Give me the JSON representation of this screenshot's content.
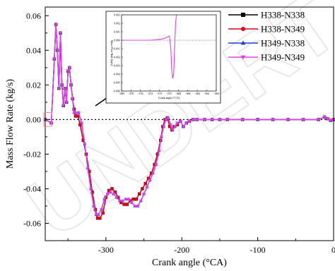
{
  "watermark": "UNDERT",
  "chart_data": {
    "type": "line",
    "title": "",
    "xlabel": "Crank angle (°CA)",
    "ylabel": "Mass Flow Rate (kg/s)",
    "xlim": [
      -380,
      0
    ],
    "ylim": [
      -0.07,
      0.065
    ],
    "xticks": [
      -300,
      -200,
      -100,
      0
    ],
    "xtick_labels": [
      "-300",
      "-200",
      "-100",
      "0"
    ],
    "yticks": [
      0.06,
      0.04,
      0.02,
      0.0,
      -0.02,
      -0.04,
      -0.06
    ],
    "ytick_labels": [
      "0.06",
      "0.04",
      "0.02",
      "0.00",
      "-0.02",
      "-0.04",
      "-0.06"
    ],
    "reference_line_y": 0.0,
    "legend_position": "top-right",
    "series": [
      {
        "name": "H338-N338",
        "color": "#000000",
        "marker": "square",
        "x": [
          -380,
          -372,
          -368,
          -366,
          -364,
          -362,
          -360,
          -358,
          -356,
          -354,
          -352,
          -350,
          -348,
          -346,
          -344,
          -342,
          -340,
          -337,
          -334,
          -330,
          -326,
          -322,
          -318,
          -314,
          -311,
          -308,
          -304,
          -300,
          -296,
          -292,
          -288,
          -284,
          -280,
          -276,
          -272,
          -268,
          -264,
          -260,
          -256,
          -252,
          -248,
          -244,
          -240,
          -236,
          -232,
          -228,
          -225,
          -222,
          -219,
          -216,
          -213,
          -210,
          -206,
          -202,
          -198,
          -194,
          -190,
          -185,
          -180,
          -170,
          -160,
          -150,
          -140,
          -120,
          -100,
          -80,
          -60,
          -40,
          -20,
          -12,
          -8,
          -4,
          0
        ],
        "y": [
          0.0,
          -0.002,
          0.035,
          0.055,
          0.04,
          0.018,
          0.05,
          0.02,
          0.008,
          0.018,
          0.01,
          0.028,
          0.03,
          0.02,
          0.012,
          0.006,
          0.002,
          0.002,
          -0.003,
          -0.012,
          -0.02,
          -0.03,
          -0.042,
          -0.052,
          -0.057,
          -0.057,
          -0.054,
          -0.045,
          -0.041,
          -0.04,
          -0.042,
          -0.045,
          -0.048,
          -0.049,
          -0.049,
          -0.047,
          -0.046,
          -0.046,
          -0.043,
          -0.04,
          -0.037,
          -0.034,
          -0.031,
          -0.026,
          -0.02,
          -0.012,
          -0.004,
          0.0,
          0.001,
          -0.004,
          -0.006,
          -0.004,
          -0.003,
          -0.001,
          -0.004,
          -0.002,
          -0.001,
          0.0,
          0.0,
          0.0,
          0.0,
          0.0,
          0.0,
          0.0,
          0.0,
          0.0,
          0.0,
          0.0,
          0.0,
          0.0015,
          0.0005,
          -0.0005,
          0.0
        ]
      },
      {
        "name": "H338-N349",
        "color": "#e3001b",
        "marker": "circle",
        "x": [
          -380,
          -372,
          -368,
          -366,
          -364,
          -362,
          -360,
          -358,
          -356,
          -354,
          -352,
          -350,
          -348,
          -346,
          -344,
          -342,
          -340,
          -337,
          -334,
          -330,
          -326,
          -322,
          -318,
          -314,
          -311,
          -308,
          -304,
          -300,
          -296,
          -292,
          -288,
          -284,
          -280,
          -276,
          -272,
          -268,
          -264,
          -260,
          -256,
          -252,
          -248,
          -244,
          -240,
          -236,
          -232,
          -228,
          -225,
          -222,
          -219,
          -216,
          -213,
          -210,
          -206,
          -202,
          -198,
          -194,
          -190,
          -185,
          -180,
          -170,
          -160,
          -150,
          -140,
          -120,
          -100,
          -80,
          -60,
          -40,
          -20,
          -12,
          -8,
          -4,
          0
        ],
        "y": [
          0.0,
          -0.002,
          0.035,
          0.055,
          0.04,
          0.018,
          0.05,
          0.02,
          0.008,
          0.018,
          0.01,
          0.028,
          0.03,
          0.02,
          0.012,
          0.006,
          0.002,
          0.002,
          -0.003,
          -0.012,
          -0.02,
          -0.03,
          -0.042,
          -0.052,
          -0.057,
          -0.057,
          -0.054,
          -0.045,
          -0.041,
          -0.04,
          -0.042,
          -0.045,
          -0.048,
          -0.049,
          -0.049,
          -0.047,
          -0.046,
          -0.046,
          -0.043,
          -0.04,
          -0.037,
          -0.034,
          -0.031,
          -0.026,
          -0.02,
          -0.012,
          -0.004,
          0.0,
          0.001,
          -0.004,
          -0.006,
          -0.004,
          -0.003,
          -0.001,
          -0.004,
          -0.002,
          -0.001,
          0.0,
          0.0,
          0.0,
          0.0,
          0.0,
          0.0,
          0.0,
          0.0,
          0.0,
          0.0,
          0.0,
          0.0,
          0.0015,
          0.0005,
          -0.0005,
          0.0
        ]
      },
      {
        "name": "H349-N338",
        "color": "#1f3ed8",
        "marker": "triangle",
        "x": [
          -380,
          -372,
          -368,
          -366,
          -364,
          -362,
          -360,
          -358,
          -356,
          -354,
          -352,
          -350,
          -348,
          -346,
          -344,
          -342,
          -340,
          -336,
          -332,
          -328,
          -324,
          -320,
          -316,
          -313,
          -310,
          -306,
          -302,
          -298,
          -294,
          -290,
          -286,
          -282,
          -278,
          -274,
          -270,
          -266,
          -262,
          -258,
          -254,
          -250,
          -246,
          -242,
          -238,
          -234,
          -230,
          -227,
          -224,
          -221,
          -218,
          -215,
          -212,
          -209,
          -206,
          -202,
          -198,
          -194,
          -190,
          -185,
          -180,
          -170,
          -160,
          -150,
          -140,
          -120,
          -100,
          -80,
          -60,
          -40,
          -20,
          -12,
          -8,
          -4,
          0
        ],
        "y": [
          0.0,
          -0.002,
          0.035,
          0.055,
          0.04,
          0.018,
          0.05,
          0.02,
          0.008,
          0.018,
          0.01,
          0.028,
          0.03,
          0.02,
          0.012,
          0.004,
          0.004,
          0.004,
          -0.002,
          -0.014,
          -0.028,
          -0.04,
          -0.05,
          -0.055,
          -0.055,
          -0.052,
          -0.046,
          -0.043,
          -0.042,
          -0.043,
          -0.045,
          -0.047,
          -0.047,
          -0.046,
          -0.046,
          -0.048,
          -0.05,
          -0.05,
          -0.047,
          -0.043,
          -0.039,
          -0.035,
          -0.031,
          -0.026,
          -0.018,
          -0.01,
          -0.004,
          0.0,
          0.001,
          -0.003,
          -0.006,
          -0.004,
          -0.002,
          -0.001,
          -0.004,
          -0.002,
          -0.001,
          0.0,
          0.0,
          0.0,
          0.0,
          0.0,
          0.0,
          0.0,
          0.0,
          0.0,
          0.0,
          0.0,
          0.0,
          0.0015,
          0.0005,
          -0.0005,
          0.0
        ]
      },
      {
        "name": "H349-N349",
        "color": "#e040e6",
        "marker": "triangle-down",
        "x": [
          -380,
          -372,
          -368,
          -366,
          -364,
          -362,
          -360,
          -358,
          -356,
          -354,
          -352,
          -350,
          -348,
          -346,
          -344,
          -342,
          -340,
          -336,
          -332,
          -328,
          -324,
          -320,
          -316,
          -313,
          -310,
          -306,
          -302,
          -298,
          -294,
          -290,
          -286,
          -282,
          -278,
          -274,
          -270,
          -266,
          -262,
          -258,
          -254,
          -250,
          -246,
          -242,
          -238,
          -234,
          -230,
          -227,
          -224,
          -221,
          -218,
          -215,
          -212,
          -209,
          -206,
          -202,
          -198,
          -194,
          -190,
          -185,
          -180,
          -170,
          -160,
          -150,
          -140,
          -120,
          -100,
          -80,
          -60,
          -40,
          -20,
          -12,
          -8,
          -4,
          0
        ],
        "y": [
          0.0,
          -0.002,
          0.035,
          0.055,
          0.04,
          0.018,
          0.05,
          0.02,
          0.008,
          0.018,
          0.01,
          0.028,
          0.03,
          0.02,
          0.012,
          0.004,
          0.004,
          0.004,
          -0.002,
          -0.014,
          -0.028,
          -0.04,
          -0.05,
          -0.055,
          -0.055,
          -0.052,
          -0.046,
          -0.043,
          -0.042,
          -0.043,
          -0.045,
          -0.047,
          -0.047,
          -0.046,
          -0.046,
          -0.048,
          -0.05,
          -0.05,
          -0.047,
          -0.043,
          -0.039,
          -0.035,
          -0.031,
          -0.026,
          -0.018,
          -0.01,
          -0.004,
          0.0,
          0.001,
          -0.003,
          -0.006,
          -0.004,
          -0.002,
          -0.001,
          -0.004,
          -0.002,
          -0.001,
          0.0,
          0.0,
          0.0,
          0.0,
          0.0,
          0.0,
          0.0,
          0.0,
          0.0,
          0.0,
          0.0,
          0.0,
          0.0015,
          0.0005,
          -0.0005,
          0.0
        ]
      }
    ],
    "inset": {
      "type": "line",
      "xlabel": "Crank angle (°CA)",
      "ylabel": "Mass Flow Rate (kg/s)",
      "xlim": [
        -380,
        -360
      ],
      "ylim": [
        -0.006,
        0.003
      ],
      "xticks": [
        -380,
        -378,
        -376,
        -374,
        -372,
        -370,
        -368,
        -366,
        -364,
        -362,
        -360
      ],
      "xtick_labels": [
        "-380",
        "-378",
        "-376",
        "-374",
        "-372",
        "-370",
        "-368",
        "-366",
        "-364",
        "-362",
        "-360"
      ],
      "yticks": [
        0.003,
        0.002,
        0.001,
        0.0,
        -0.001,
        -0.002,
        -0.003,
        -0.004,
        -0.005,
        -0.006
      ],
      "ytick_labels": [
        "0.003",
        "0.002",
        "0.001",
        "0.000",
        "-0.001",
        "-0.002",
        "-0.003",
        "-0.004",
        "-0.005",
        "-0.006"
      ],
      "reference_line_y": 0.0,
      "series": [
        {
          "name": "H349-N349",
          "color": "#e040e6",
          "x": [
            -380,
            -378,
            -376,
            -374,
            -372,
            -371,
            -370.3,
            -369.9,
            -369.6,
            -369.4,
            -369.2,
            -369.0,
            -368.8,
            -368.6,
            -368.4
          ],
          "y": [
            0.0,
            0.0,
            0.0,
            0.0,
            0.0001,
            0.0002,
            0.0004,
            0.0005,
            -0.001,
            -0.0035,
            -0.0045,
            -0.004,
            -0.001,
            0.002,
            0.003
          ]
        }
      ]
    },
    "annotation": {
      "type": "zoom-box-with-arrow",
      "region_x": [
        -380,
        -372
      ],
      "region_y": [
        -0.004,
        0.004
      ]
    }
  }
}
